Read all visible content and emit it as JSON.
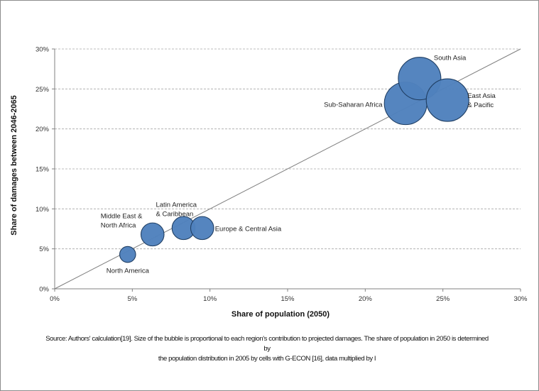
{
  "chart_data": {
    "type": "scatter",
    "title": "",
    "xlabel": "Share of population  (2050)",
    "ylabel": "Share of damages  between 2046-2065",
    "xlim": [
      0,
      30
    ],
    "ylim": [
      0,
      30
    ],
    "x_ticks": [
      "0%",
      "5%",
      "10%",
      "15%",
      "20%",
      "25%",
      "30%"
    ],
    "y_ticks": [
      "0%",
      "5%",
      "10%",
      "15%",
      "20%",
      "25%",
      "30%"
    ],
    "grid": "horizontal dashed",
    "reference_line": {
      "from": [
        0,
        0
      ],
      "to": [
        30,
        30
      ]
    },
    "bubble_color": "#4f81bd",
    "bubble_edge_color": "#1f3e63",
    "points": [
      {
        "name": "North America",
        "label_lines": [
          "North America"
        ],
        "x": 4.7,
        "y": 4.3,
        "size": 0.9
      },
      {
        "name": "Middle East & North Africa",
        "label_lines": [
          "Middle East &",
          "North Africa"
        ],
        "x": 6.3,
        "y": 6.8,
        "size": 1.3
      },
      {
        "name": "Latin America & Caribbean",
        "label_lines": [
          "Latin America",
          "& Caribbean"
        ],
        "x": 8.3,
        "y": 7.6,
        "size": 1.3
      },
      {
        "name": "Europe & Central Asia",
        "label_lines": [
          "Europe & Central Asia"
        ],
        "x": 9.5,
        "y": 7.6,
        "size": 1.3
      },
      {
        "name": "Sub-Saharan Africa",
        "label_lines": [
          "Sub-Saharan Africa"
        ],
        "x": 22.6,
        "y": 23.2,
        "size": 2.4
      },
      {
        "name": "South Asia",
        "label_lines": [
          "South Asia"
        ],
        "x": 23.5,
        "y": 26.3,
        "size": 2.4
      },
      {
        "name": "East Asia & Pacific",
        "label_lines": [
          "East Asia",
          "& Pacific"
        ],
        "x": 25.3,
        "y": 23.6,
        "size": 2.4
      }
    ]
  },
  "source_note": {
    "line1": "Source: Authors' calculation[19]. Size of the bubble is  proportional to each region's contribution to projected damages. The share of population in 2050 is determined by",
    "line2": "the population distribution in 2005 by cells with G-ECON [16], data multiplied by I"
  }
}
